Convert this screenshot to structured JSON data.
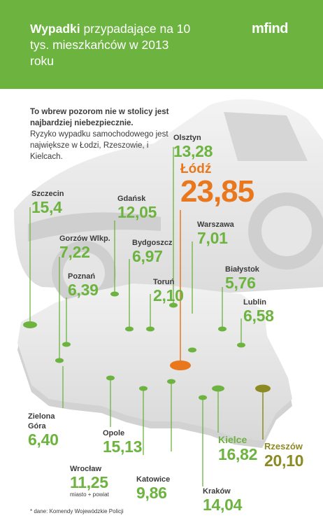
{
  "header": {
    "title_bold": "Wypadki",
    "title_rest": "przypadające na 10 tys. mieszkańców w 2013 roku",
    "logo": "mfind",
    "bg_color": "#6cb33f"
  },
  "intro": {
    "lead": "To wbrew pozorom nie w stolicy jest najbardziej niebezpiecznie.",
    "body": "Ryzyko wypadku samochodowego jest największe w Łodzi, Rzeszowie, i Kielcach."
  },
  "cities": [
    {
      "name": "Olsztyn",
      "value": "13,28"
    },
    {
      "name": "Łódź",
      "value": "23,85"
    },
    {
      "name": "Szczecin",
      "value": "15,4"
    },
    {
      "name": "Gdańsk",
      "value": "12,05"
    },
    {
      "name": "Warszawa",
      "value": "7,01"
    },
    {
      "name": "Gorzów Wlkp.",
      "value": "7,22"
    },
    {
      "name": "Bydgoszcz",
      "value": "6,97"
    },
    {
      "name": "Poznań",
      "value": "6,39"
    },
    {
      "name": "Toruń",
      "value": "2,10"
    },
    {
      "name": "Białystok",
      "value": "5,76"
    },
    {
      "name": "Lublin",
      "value": "6,58"
    },
    {
      "name": "Zielona Góra",
      "value": "6,40"
    },
    {
      "name": "Opole",
      "value": "15,13"
    },
    {
      "name": "Kielce",
      "value": "16,82"
    },
    {
      "name": "Rzeszów",
      "value": "20,10"
    },
    {
      "name": "Wrocław",
      "value": "11,25",
      "note": "miasto + powiat"
    },
    {
      "name": "Katowice",
      "value": "9,86"
    },
    {
      "name": "Kraków",
      "value": "14,04"
    }
  ],
  "footnote": "* dane: Komendy Wojewódzkie Policji",
  "colors": {
    "green": "#6cb33f",
    "orange": "#e8771d",
    "olive": "#8c8a22",
    "map": "#e9e9e9"
  }
}
